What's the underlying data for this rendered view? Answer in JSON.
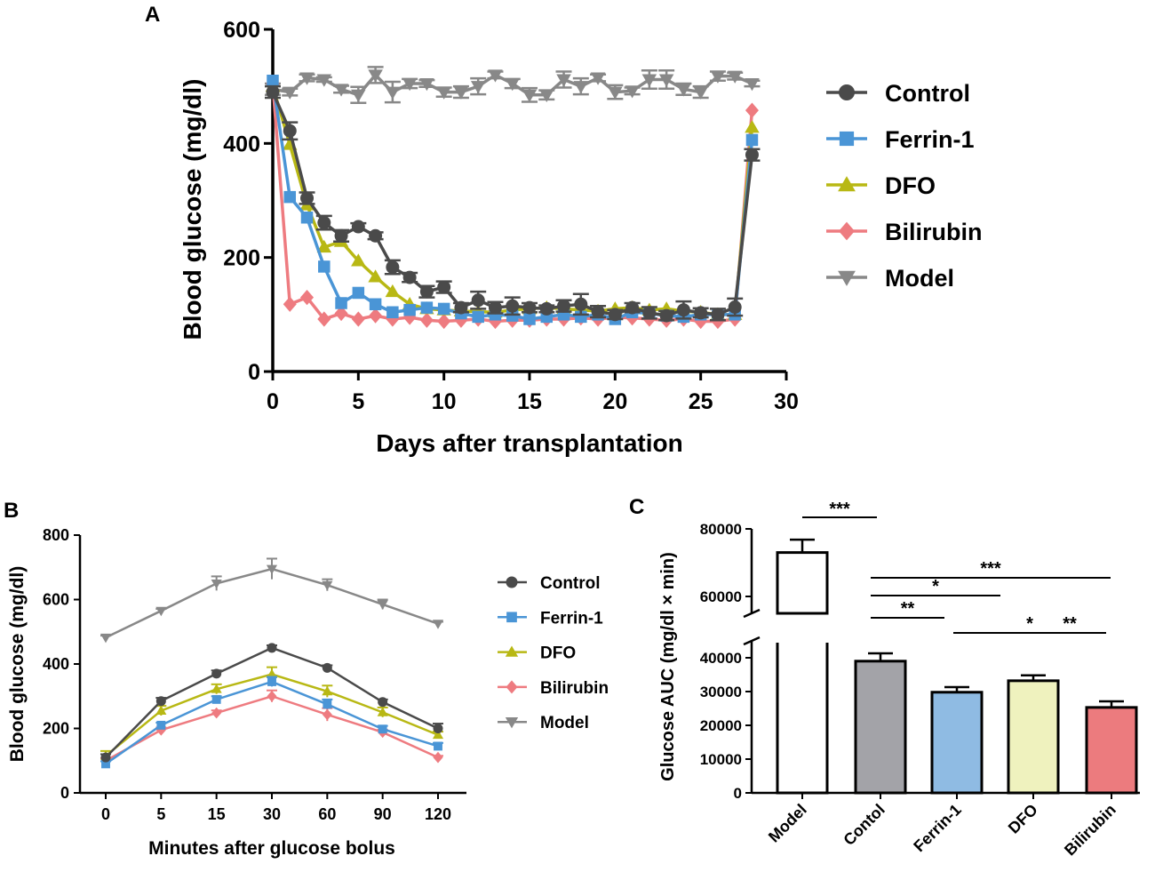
{
  "colors": {
    "Control": "#4a4a4a",
    "Ferrin-1": "#4a95d6",
    "DFO": "#b8b814",
    "Bilirubin": "#ee7b80",
    "Model": "#888888",
    "bar_Model": "#ffffff",
    "bar_Contol": "#a3a3a8",
    "bar_Ferrin-1": "#8fbbe3",
    "bar_DFO": "#eff2be",
    "bar_Bilirubin": "#ec7b7e"
  },
  "chart_data": [
    {
      "panel": "A",
      "type": "line",
      "xlabel": "Days after transplantation",
      "ylabel": "Blood glucose (mg/dl)",
      "xlim": [
        0,
        30
      ],
      "ylim": [
        0,
        600
      ],
      "xticks": [
        "0",
        "5",
        "10",
        "15",
        "20",
        "25",
        "30"
      ],
      "yticks": [
        "0",
        "200",
        "400",
        "600"
      ],
      "legend": "right",
      "x": [
        0,
        1,
        2,
        3,
        4,
        5,
        6,
        7,
        8,
        9,
        10,
        11,
        12,
        13,
        14,
        15,
        16,
        17,
        18,
        19,
        20,
        21,
        22,
        23,
        24,
        25,
        26,
        27,
        28
      ],
      "series": [
        {
          "name": "Control",
          "marker": "circle",
          "values": [
            490,
            422,
            304,
            261,
            238,
            254,
            238,
            183,
            165,
            140,
            148,
            112,
            125,
            112,
            115,
            112,
            110,
            115,
            118,
            105,
            100,
            112,
            103,
            98,
            108,
            103,
            100,
            113,
            380
          ],
          "errors": [
            10,
            15,
            10,
            12,
            10,
            6,
            6,
            12,
            8,
            10,
            10,
            8,
            15,
            10,
            15,
            8,
            6,
            10,
            18,
            10,
            8,
            8,
            10,
            8,
            15,
            8,
            10,
            15,
            10
          ]
        },
        {
          "name": "Ferrin-1",
          "marker": "square",
          "values": [
            510,
            306,
            270,
            184,
            120,
            138,
            118,
            104,
            108,
            112,
            110,
            102,
            96,
            100,
            98,
            92,
            96,
            100,
            96,
            100,
            92,
            104,
            102,
            98,
            96,
            100,
            100,
            100,
            406
          ]
        },
        {
          "name": "DFO",
          "marker": "triangle-up",
          "values": [
            500,
            398,
            292,
            218,
            228,
            194,
            166,
            140,
            118,
            110,
            108,
            106,
            105,
            104,
            108,
            110,
            112,
            110,
            108,
            106,
            110,
            112,
            108,
            110,
            106,
            104,
            100,
            100,
            428
          ]
        },
        {
          "name": "Bilirubin",
          "marker": "diamond",
          "values": [
            505,
            118,
            130,
            92,
            102,
            92,
            98,
            92,
            95,
            90,
            88,
            90,
            92,
            88,
            90,
            90,
            92,
            92,
            94,
            92,
            95,
            94,
            92,
            90,
            92,
            88,
            88,
            92,
            458
          ]
        },
        {
          "name": "Model",
          "marker": "triangle-down",
          "values": [
            495,
            490,
            515,
            512,
            495,
            485,
            520,
            490,
            505,
            505,
            490,
            490,
            500,
            520,
            505,
            485,
            485,
            512,
            500,
            515,
            490,
            492,
            512,
            512,
            495,
            490,
            518,
            518,
            505
          ],
          "errors": [
            10,
            6,
            6,
            4,
            6,
            14,
            14,
            18,
            8,
            6,
            8,
            10,
            14,
            6,
            8,
            12,
            8,
            14,
            14,
            6,
            12,
            6,
            16,
            16,
            10,
            10,
            8,
            6,
            5
          ]
        }
      ]
    },
    {
      "panel": "B",
      "type": "line",
      "xlabel": "Minutes after glucose bolus",
      "ylabel": "Blood glucose (mg/dl)",
      "categories": [
        "0",
        "5",
        "15",
        "30",
        "60",
        "90",
        "120"
      ],
      "ylim": [
        0,
        800
      ],
      "yticks": [
        "0",
        "200",
        "400",
        "600",
        "800"
      ],
      "legend": "right",
      "series": [
        {
          "name": "Control",
          "marker": "circle",
          "values": [
            110,
            285,
            370,
            450,
            388,
            282,
            200
          ],
          "errors": [
            10,
            10,
            10,
            8,
            8,
            8,
            15
          ]
        },
        {
          "name": "Ferrin-1",
          "marker": "square",
          "values": [
            90,
            210,
            290,
            345,
            275,
            198,
            145
          ],
          "errors": [
            8,
            8,
            10,
            15,
            15,
            10,
            10
          ]
        },
        {
          "name": "DFO",
          "marker": "triangle-up",
          "values": [
            115,
            255,
            322,
            368,
            315,
            250,
            180
          ],
          "errors": [
            15,
            15,
            15,
            22,
            18,
            15,
            10
          ]
        },
        {
          "name": "Bilirubin",
          "marker": "diamond",
          "values": [
            100,
            195,
            248,
            300,
            243,
            188,
            110
          ],
          "errors": [
            8,
            8,
            8,
            18,
            20,
            8,
            5
          ]
        },
        {
          "name": "Model",
          "marker": "triangle-down",
          "values": [
            482,
            565,
            650,
            695,
            645,
            585,
            525
          ],
          "errors": [
            6,
            6,
            22,
            32,
            18,
            15,
            6
          ]
        }
      ]
    },
    {
      "panel": "C",
      "type": "bar",
      "ylabel": "Glucose AUC (mg/dl × min)",
      "categories": [
        "Model",
        "Contol",
        "Ferrin-1",
        "DFO",
        "Bilirubin"
      ],
      "values": [
        73000,
        39000,
        29800,
        33200,
        25300
      ],
      "errors": [
        3800,
        2300,
        1500,
        1600,
        1800
      ],
      "axis_break": [
        45000,
        55000
      ],
      "ylim": [
        0,
        80000
      ],
      "yticks": [
        "0",
        "10000",
        "20000",
        "30000",
        "40000",
        "60000",
        "80000"
      ],
      "significance": [
        {
          "from": "Model",
          "to": "Contol",
          "label": "***"
        },
        {
          "from": "Contol",
          "to": "Bilirubin",
          "label": "***"
        },
        {
          "from": "Contol",
          "to": "DFO",
          "label": "*"
        },
        {
          "from": "Contol",
          "to": "Ferrin-1",
          "label": "**"
        },
        {
          "from": "Ferrin-1",
          "to": "Bilirubin",
          "label": "*"
        },
        {
          "from": "DFO",
          "to": "Bilirubin",
          "label": "**"
        }
      ]
    }
  ],
  "panels": {
    "a_label": "A",
    "b_label": "B",
    "c_label": "C"
  }
}
